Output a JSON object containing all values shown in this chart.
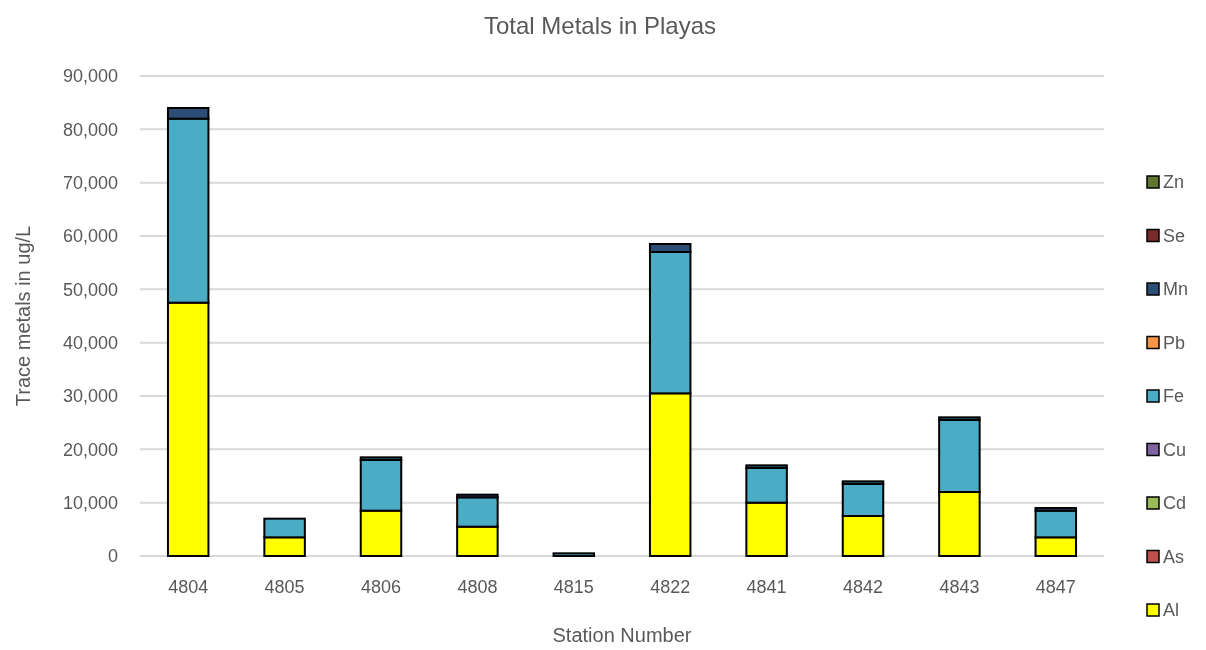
{
  "chart_data": {
    "type": "bar",
    "title": "Total Metals in Playas",
    "xlabel": "Station Number",
    "ylabel": "Trace metals in ug/L",
    "categories": [
      "4804",
      "4805",
      "4806",
      "4808",
      "4815",
      "4822",
      "4841",
      "4842",
      "4843",
      "4847"
    ],
    "stacked": true,
    "ylim": [
      0,
      90000
    ],
    "yticks": [
      {
        "value": 0,
        "label": "0"
      },
      {
        "value": 10000,
        "label": "10,000"
      },
      {
        "value": 20000,
        "label": "20,000"
      },
      {
        "value": 30000,
        "label": "30,000"
      },
      {
        "value": 40000,
        "label": "40,000"
      },
      {
        "value": 50000,
        "label": "50,000"
      },
      {
        "value": 60000,
        "label": "60,000"
      },
      {
        "value": 70000,
        "label": "70,000"
      },
      {
        "value": 80000,
        "label": "80,000"
      },
      {
        "value": 90000,
        "label": "90,000"
      }
    ],
    "grid": "y",
    "legend": "right",
    "series": [
      {
        "name": "Al",
        "color": "#ffff00",
        "values": [
          47500,
          3500,
          8500,
          5500,
          null,
          30500,
          10000,
          7500,
          12000,
          3500
        ]
      },
      {
        "name": "As",
        "color": "#c0504d",
        "values": [
          0,
          0,
          0,
          0,
          0,
          0,
          0,
          0,
          0,
          0
        ]
      },
      {
        "name": "Cd",
        "color": "#9bbb59",
        "values": [
          0,
          0,
          0,
          0,
          0,
          0,
          0,
          0,
          0,
          0
        ]
      },
      {
        "name": "Cu",
        "color": "#8064a2",
        "values": [
          0,
          0,
          0,
          0,
          0,
          0,
          0,
          0,
          0,
          0
        ]
      },
      {
        "name": "Fe",
        "color": "#4bacc6",
        "values": [
          34500,
          3500,
          9500,
          5500,
          500,
          26500,
          6500,
          6000,
          13500,
          5000
        ]
      },
      {
        "name": "Pb",
        "color": "#f79646",
        "values": [
          0,
          0,
          0,
          0,
          0,
          0,
          0,
          0,
          0,
          0
        ]
      },
      {
        "name": "Mn",
        "color": "#2c4d75",
        "values": [
          2000,
          0,
          500,
          500,
          0,
          1500,
          500,
          500,
          500,
          500
        ]
      },
      {
        "name": "Se",
        "color": "#772c2a",
        "values": [
          0,
          0,
          0,
          0,
          0,
          0,
          0,
          0,
          0,
          0
        ]
      },
      {
        "name": "Zn",
        "color": "#5f7530",
        "values": [
          0,
          0,
          0,
          0,
          0,
          0,
          0,
          0,
          0,
          0
        ]
      }
    ]
  }
}
